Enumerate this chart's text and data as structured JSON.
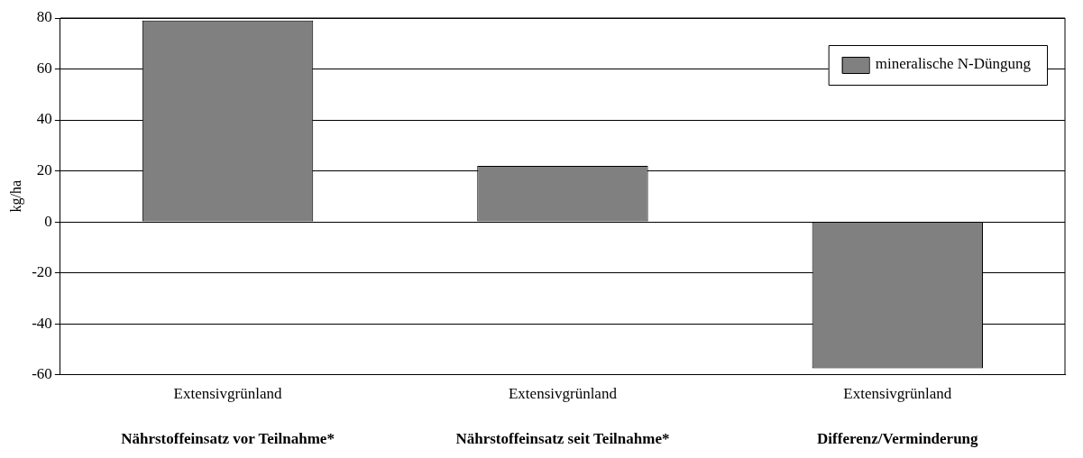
{
  "chart_data": {
    "type": "bar",
    "ylabel": "kg/ha",
    "categories": [
      "Extensivgrünland",
      "Extensivgrünland",
      "Extensivgrünland"
    ],
    "series": [
      {
        "name": "mineralische N-Düngung",
        "color": "#808080",
        "values": [
          79,
          22,
          -57.5
        ]
      }
    ],
    "ylim": [
      -60,
      80
    ],
    "yticks": [
      -60,
      -40,
      -20,
      0,
      20,
      40,
      60,
      80
    ],
    "grid": "y",
    "legend": "top right",
    "annotations": [
      "Nährstoffeinsatz vor Teilnahme*",
      "Nährstoffeinsatz seit Teilnahme*",
      "Differenz/Verminderung"
    ]
  }
}
